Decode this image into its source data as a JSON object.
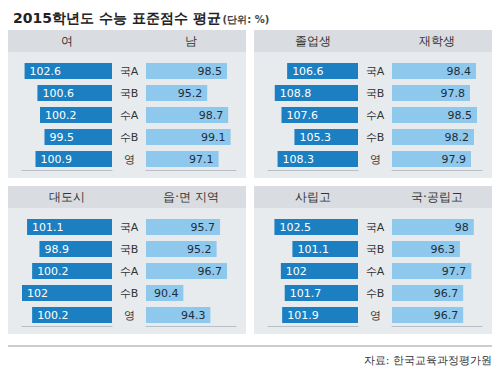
{
  "title": "2015학년도 수능 표준점수 평균",
  "subtitle": "(단위: %)",
  "source": "자료: 한국교육과정평가원",
  "chart_data": [
    {
      "type": "bar",
      "orientation": "horizontal",
      "data_labels": true,
      "tick_labels": false,
      "categories": [
        "국A",
        "국B",
        "수A",
        "수B",
        "영"
      ],
      "series": [
        {
          "name": "여",
          "color": "#1b7fc1",
          "values": [
            102.6,
            100.6,
            100.2,
            99.5,
            100.9
          ],
          "xlim": [
            89,
            103
          ]
        },
        {
          "name": "남",
          "color": "#8ec8ec",
          "values": [
            98.5,
            95.2,
            98.7,
            99.1,
            97.1
          ],
          "xlim": [
            85,
            100
          ]
        }
      ]
    },
    {
      "type": "bar",
      "orientation": "horizontal",
      "data_labels": true,
      "tick_labels": false,
      "categories": [
        "국A",
        "국B",
        "수A",
        "수B",
        "영"
      ],
      "series": [
        {
          "name": "졸업생",
          "color": "#1b7fc1",
          "values": [
            106.6,
            108.8,
            107.6,
            105.3,
            108.3
          ],
          "xlim": [
            94,
            110
          ]
        },
        {
          "name": "재학생",
          "color": "#8ec8ec",
          "values": [
            98.4,
            97.8,
            98.5,
            98.2,
            97.9
          ],
          "xlim": [
            90,
            99
          ]
        }
      ]
    },
    {
      "type": "bar",
      "orientation": "horizontal",
      "data_labels": true,
      "tick_labels": false,
      "categories": [
        "국A",
        "국B",
        "수A",
        "수B",
        "영"
      ],
      "series": [
        {
          "name": "대도시",
          "color": "#1b7fc1",
          "values": [
            101.1,
            98.9,
            100.2,
            102.0,
            100.2
          ],
          "xlim": [
            86,
            102
          ]
        },
        {
          "name": "읍·면 지역",
          "color": "#8ec8ec",
          "values": [
            95.7,
            95.2,
            96.7,
            90.4,
            94.3
          ],
          "xlim": [
            85,
            98
          ]
        }
      ]
    },
    {
      "type": "bar",
      "orientation": "horizontal",
      "data_labels": true,
      "tick_labels": false,
      "categories": [
        "국A",
        "국B",
        "수A",
        "수B",
        "영"
      ],
      "series": [
        {
          "name": "사립고",
          "color": "#1b7fc1",
          "values": [
            102.5,
            101.1,
            102.0,
            101.7,
            101.9
          ],
          "xlim": [
            96,
            103
          ]
        },
        {
          "name": "국·공립고",
          "color": "#8ec8ec",
          "values": [
            98.0,
            96.3,
            97.7,
            96.7,
            96.7
          ],
          "xlim": [
            88,
            99
          ]
        }
      ]
    }
  ]
}
